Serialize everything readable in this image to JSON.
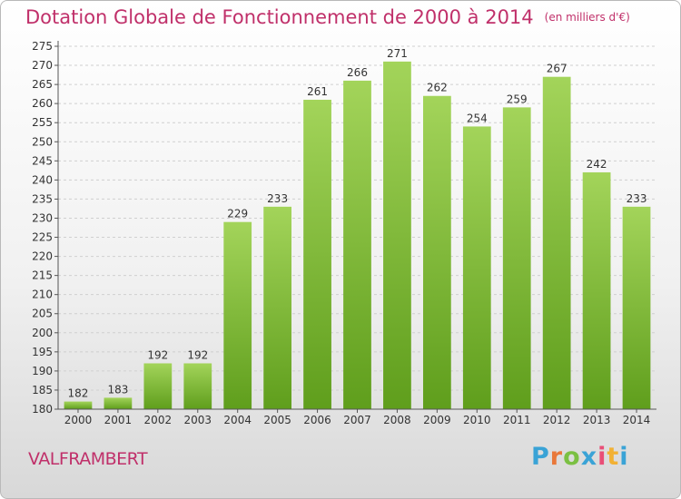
{
  "header": {
    "title": "Dotation Globale de Fonctionnement de 2000 à 2014",
    "unit": "(en milliers d'€)"
  },
  "footer": {
    "place": "VALFRAMBERT",
    "logo_letters": [
      "P",
      "r",
      "o",
      "x",
      "i",
      "t",
      "i"
    ]
  },
  "colors": {
    "title": "#c0306a",
    "bar_top": "#a3d45a",
    "bar_bottom": "#5f9e1c",
    "grid": "#cfcfcf"
  },
  "chart_data": {
    "type": "bar",
    "title": "Dotation Globale de Fonctionnement de 2000 à 2014",
    "subtitle": "(en milliers d'€)",
    "categories": [
      "2000",
      "2001",
      "2002",
      "2003",
      "2004",
      "2005",
      "2006",
      "2007",
      "2008",
      "2009",
      "2010",
      "2011",
      "2012",
      "2013",
      "2014"
    ],
    "values": [
      182,
      183,
      192,
      192,
      229,
      233,
      261,
      266,
      271,
      262,
      254,
      259,
      267,
      242,
      233
    ],
    "ylim": [
      180,
      275
    ],
    "ytick_step": 5,
    "grid": "horizontal",
    "data_labels": true
  }
}
